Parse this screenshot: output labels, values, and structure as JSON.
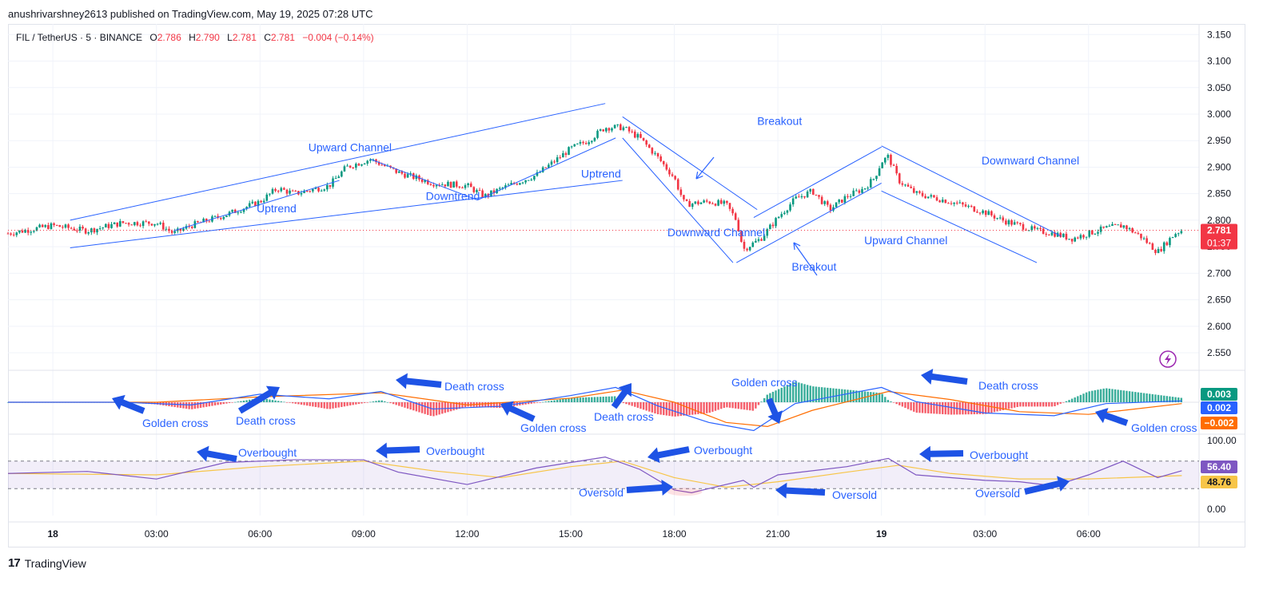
{
  "header": {
    "publish_line": "anushrivarshney2613 published on TradingView.com, May 19, 2025 07:28 UTC"
  },
  "legend": {
    "symbol": "FIL / TetherUS · 5 · BINANCE",
    "o_label": "O",
    "o": "2.786",
    "h_label": "H",
    "h": "2.790",
    "l_label": "L",
    "l": "2.781",
    "c_label": "C",
    "c": "2.781",
    "change": "−0.004 (−0.14%)"
  },
  "footer": {
    "brand": "TradingView"
  },
  "colors": {
    "up": "#089981",
    "down": "#f23645",
    "drawing": "#2962ff",
    "annotation_text": "#2962ff",
    "rsi_line": "#7e57c2",
    "rsi_ma": "#f7c548",
    "macd_line": "#2962ff",
    "signal_line": "#ff6d00"
  },
  "badges": {
    "price": "2.781",
    "countdown": "01:37",
    "macd_hist": "0.003",
    "macd_line": "0.002",
    "macd_signal": "−0.002",
    "rsi": "56.40",
    "rsi_ma": "48.76"
  },
  "chart_data": {
    "type": "candlestick",
    "symbol": "FIL / TetherUS",
    "interval": "5",
    "exchange": "BINANCE",
    "ylim": [
      2.52,
      3.17
    ],
    "y_ticks": [
      "3.150",
      "3.100",
      "3.050",
      "3.000",
      "2.950",
      "2.900",
      "2.850",
      "2.800",
      "2.750",
      "2.700",
      "2.650",
      "2.600",
      "2.550"
    ],
    "x_ticks": [
      {
        "label": "18",
        "t": 0
      },
      {
        "label": "03:00",
        "t": 3
      },
      {
        "label": "06:00",
        "t": 6
      },
      {
        "label": "09:00",
        "t": 9
      },
      {
        "label": "12:00",
        "t": 12
      },
      {
        "label": "15:00",
        "t": 15
      },
      {
        "label": "18:00",
        "t": 18
      },
      {
        "label": "21:00",
        "t": 21
      },
      {
        "label": "19",
        "t": 24
      },
      {
        "label": "03:00",
        "t": 27
      },
      {
        "label": "06:00",
        "t": 30
      }
    ],
    "xlim_hours": [
      -1.3,
      33.2
    ],
    "price_path": [
      [
        -1.3,
        2.775
      ],
      [
        0,
        2.79
      ],
      [
        1,
        2.78
      ],
      [
        2,
        2.795
      ],
      [
        3,
        2.795
      ],
      [
        3.5,
        2.775
      ],
      [
        4,
        2.79
      ],
      [
        5,
        2.81
      ],
      [
        6,
        2.835
      ],
      [
        6.5,
        2.86
      ],
      [
        7,
        2.85
      ],
      [
        8,
        2.865
      ],
      [
        8.5,
        2.9
      ],
      [
        9.2,
        2.915
      ],
      [
        10,
        2.89
      ],
      [
        11,
        2.87
      ],
      [
        12,
        2.865
      ],
      [
        12.5,
        2.845
      ],
      [
        13,
        2.86
      ],
      [
        14,
        2.885
      ],
      [
        14.5,
        2.91
      ],
      [
        15,
        2.935
      ],
      [
        15.5,
        2.95
      ],
      [
        16,
        2.975
      ],
      [
        16.5,
        2.975
      ],
      [
        17,
        2.955
      ],
      [
        17.5,
        2.92
      ],
      [
        18,
        2.88
      ],
      [
        18.3,
        2.83
      ],
      [
        19,
        2.835
      ],
      [
        19.5,
        2.83
      ],
      [
        19.8,
        2.8
      ],
      [
        20,
        2.745
      ],
      [
        20.5,
        2.765
      ],
      [
        21,
        2.805
      ],
      [
        21.5,
        2.84
      ],
      [
        22,
        2.855
      ],
      [
        22.5,
        2.82
      ],
      [
        23,
        2.845
      ],
      [
        23.5,
        2.86
      ],
      [
        23.8,
        2.88
      ],
      [
        24,
        2.91
      ],
      [
        24.2,
        2.92
      ],
      [
        24.5,
        2.875
      ],
      [
        25,
        2.85
      ],
      [
        26,
        2.835
      ],
      [
        27,
        2.815
      ],
      [
        27.5,
        2.8
      ],
      [
        28,
        2.79
      ],
      [
        28.5,
        2.78
      ],
      [
        29,
        2.775
      ],
      [
        29.5,
        2.765
      ],
      [
        30,
        2.775
      ],
      [
        30.5,
        2.785
      ],
      [
        31,
        2.79
      ],
      [
        31.5,
        2.77
      ],
      [
        32,
        2.74
      ],
      [
        32.5,
        2.775
      ],
      [
        32.7,
        2.781
      ]
    ],
    "macd": {
      "panel_label_values": {
        "histogram": "0.003",
        "macd": "0.002",
        "signal": "-0.002"
      },
      "macd_path": [
        [
          -1.3,
          0.0
        ],
        [
          2,
          0.0
        ],
        [
          4,
          -0.004
        ],
        [
          6,
          0.012
        ],
        [
          8,
          0.005
        ],
        [
          9.5,
          0.016
        ],
        [
          11,
          -0.01
        ],
        [
          13,
          -0.006
        ],
        [
          15,
          0.01
        ],
        [
          16.3,
          0.022
        ],
        [
          17.5,
          -0.005
        ],
        [
          19,
          -0.03
        ],
        [
          20.3,
          -0.042
        ],
        [
          21.5,
          -0.002
        ],
        [
          24,
          0.022
        ],
        [
          25,
          0.001
        ],
        [
          27,
          -0.016
        ],
        [
          29,
          -0.02
        ],
        [
          30.5,
          -0.002
        ],
        [
          32.7,
          0.002
        ]
      ],
      "signal_path": [
        [
          -1.3,
          0.0
        ],
        [
          3,
          0.0
        ],
        [
          6,
          0.008
        ],
        [
          9.5,
          0.014
        ],
        [
          12,
          -0.004
        ],
        [
          15,
          0.006
        ],
        [
          16.5,
          0.018
        ],
        [
          18,
          0.0
        ],
        [
          19.5,
          -0.03
        ],
        [
          20.7,
          -0.036
        ],
        [
          22,
          -0.012
        ],
        [
          24.2,
          0.016
        ],
        [
          26,
          0.004
        ],
        [
          28,
          -0.014
        ],
        [
          30,
          -0.018
        ],
        [
          32.7,
          -0.002
        ]
      ]
    },
    "rsi": {
      "y_ticks": [
        "100.00",
        "0.00"
      ],
      "bands": [
        70,
        30
      ],
      "panel_label_values": {
        "rsi": "56.40",
        "ma": "48.76"
      },
      "rsi_path": [
        [
          -1.3,
          52
        ],
        [
          1,
          55
        ],
        [
          3,
          44
        ],
        [
          5,
          68
        ],
        [
          7,
          72
        ],
        [
          9,
          72
        ],
        [
          10,
          54
        ],
        [
          12,
          36
        ],
        [
          14,
          60
        ],
        [
          16,
          76
        ],
        [
          17,
          58
        ],
        [
          18,
          28
        ],
        [
          18.5,
          24
        ],
        [
          20,
          42
        ],
        [
          20.3,
          32
        ],
        [
          21,
          50
        ],
        [
          23,
          62
        ],
        [
          24.2,
          74
        ],
        [
          25,
          50
        ],
        [
          27,
          42
        ],
        [
          28,
          40
        ],
        [
          29,
          34
        ],
        [
          30,
          50
        ],
        [
          31,
          70
        ],
        [
          32,
          46
        ],
        [
          32.7,
          56
        ]
      ],
      "ma_path": [
        [
          -1.3,
          52
        ],
        [
          3,
          50
        ],
        [
          6,
          62
        ],
        [
          9,
          70
        ],
        [
          11,
          56
        ],
        [
          13,
          46
        ],
        [
          15,
          62
        ],
        [
          16.5,
          70
        ],
        [
          18,
          46
        ],
        [
          19.5,
          32
        ],
        [
          21,
          40
        ],
        [
          23,
          54
        ],
        [
          24.5,
          64
        ],
        [
          26,
          52
        ],
        [
          28,
          44
        ],
        [
          30,
          44
        ],
        [
          32.7,
          49
        ]
      ]
    },
    "annotations": [
      {
        "text": "Upward Channel",
        "t": 7.4,
        "y": 2.93,
        "panel": "price"
      },
      {
        "text": "Uptrend",
        "t": 5.9,
        "y": 2.815,
        "panel": "price"
      },
      {
        "text": "Downtrend",
        "t": 10.8,
        "y": 2.838,
        "panel": "price"
      },
      {
        "text": "Uptrend",
        "t": 15.3,
        "y": 2.88,
        "panel": "price"
      },
      {
        "text": "Breakout",
        "t": 20.4,
        "y": 2.98,
        "panel": "price"
      },
      {
        "text": "Downward Channel",
        "t": 17.8,
        "y": 2.77,
        "panel": "price"
      },
      {
        "text": "Upward Channel",
        "t": 23.5,
        "y": 2.755,
        "panel": "price"
      },
      {
        "text": "Breakout",
        "t": 21.4,
        "y": 2.705,
        "panel": "price"
      },
      {
        "text": "Downward Channel",
        "t": 26.9,
        "y": 2.905,
        "panel": "price"
      },
      {
        "text": "Golden cross",
        "panel": "macd",
        "px": [
          178,
          535
        ]
      },
      {
        "text": "Death cross",
        "panel": "macd",
        "px": [
          295,
          532
        ]
      },
      {
        "text": "Death cross",
        "panel": "macd",
        "px": [
          556,
          489
        ]
      },
      {
        "text": "Golden cross",
        "panel": "macd",
        "px": [
          651,
          541
        ]
      },
      {
        "text": "Death cross",
        "panel": "macd",
        "px": [
          743,
          527
        ]
      },
      {
        "text": "Golden cross",
        "panel": "macd",
        "px": [
          915,
          484
        ]
      },
      {
        "text": "Death cross",
        "panel": "macd",
        "px": [
          1224,
          488
        ]
      },
      {
        "text": "Golden cross",
        "panel": "macd",
        "px": [
          1415,
          541
        ]
      },
      {
        "text": "Overbought",
        "panel": "rsi",
        "px": [
          298,
          572
        ]
      },
      {
        "text": "Overbought",
        "panel": "rsi",
        "px": [
          533,
          570
        ]
      },
      {
        "text": "Overbought",
        "panel": "rsi",
        "px": [
          868,
          569
        ]
      },
      {
        "text": "Overbought",
        "panel": "rsi",
        "px": [
          1213,
          575
        ]
      },
      {
        "text": "Oversold",
        "panel": "rsi",
        "px": [
          724,
          622
        ]
      },
      {
        "text": "Oversold",
        "panel": "rsi",
        "px": [
          1041,
          625
        ]
      },
      {
        "text": "Oversold",
        "panel": "rsi",
        "px": [
          1220,
          623
        ]
      }
    ]
  }
}
